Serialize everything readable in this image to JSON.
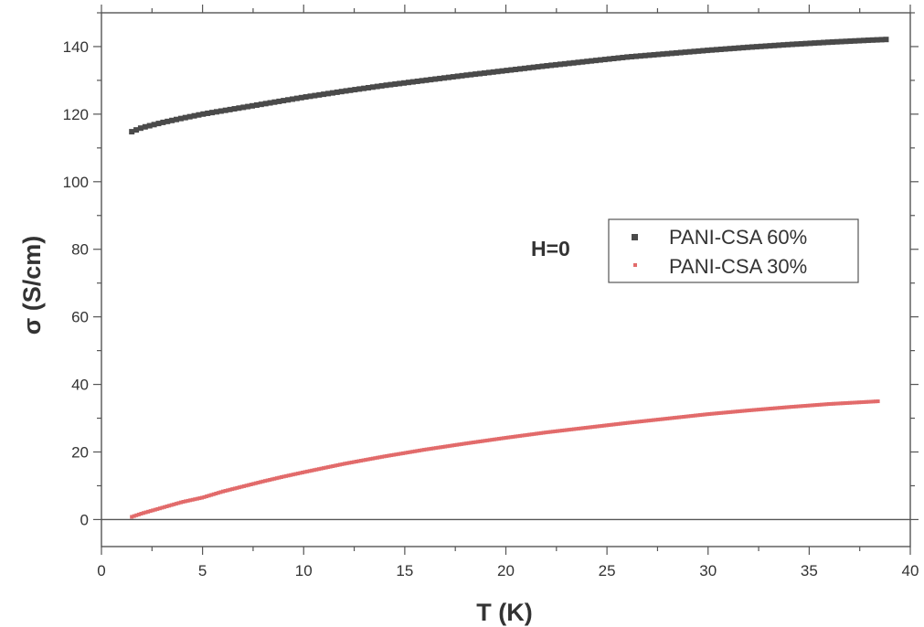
{
  "chart_data": {
    "type": "scatter",
    "xlabel": "T (K)",
    "ylabel": "σ (S/cm)",
    "xlim": [
      0,
      40
    ],
    "ylim": [
      -8,
      150
    ],
    "xticks": [
      0,
      5,
      10,
      15,
      20,
      25,
      30,
      35,
      40
    ],
    "xtick_labels": [
      "0",
      "5",
      "10",
      "15",
      "20",
      "25",
      "30",
      "35",
      "40"
    ],
    "yticks": [
      0,
      20,
      40,
      60,
      80,
      100,
      120,
      140
    ],
    "ytick_labels": [
      "0",
      "20",
      "40",
      "60",
      "80",
      "100",
      "120",
      "140"
    ],
    "zero_line": true,
    "grid": false,
    "legend": {
      "placement": "right-middle",
      "title": "H=0"
    },
    "series": [
      {
        "name": "PANI-CSA 60%",
        "color": "#4a4a4a",
        "marker": "square",
        "x": [
          1.5,
          2,
          3,
          4,
          5,
          6,
          7,
          8,
          9,
          10,
          12,
          14,
          16,
          18,
          20,
          22,
          24,
          26,
          28,
          30,
          32,
          34,
          36,
          38,
          38.8
        ],
        "y": [
          114.8,
          116,
          117.5,
          118.8,
          120,
          121,
          122,
          123,
          124,
          125,
          126.8,
          128.5,
          130,
          131.5,
          132.9,
          134.3,
          135.6,
          136.9,
          137.9,
          138.9,
          139.8,
          140.6,
          141.3,
          141.9,
          142.1
        ]
      },
      {
        "name": "PANI-CSA 30%",
        "color": "#e26b6b",
        "marker": "line",
        "x": [
          1.5,
          2,
          3,
          4,
          5,
          6,
          7,
          8,
          9,
          10,
          12,
          14,
          16,
          18,
          20,
          22,
          24,
          26,
          28,
          30,
          32,
          34,
          36,
          38.4
        ],
        "y": [
          0.8,
          1.8,
          3.5,
          5.2,
          6.5,
          8.3,
          9.8,
          11.3,
          12.7,
          14,
          16.5,
          18.7,
          20.7,
          22.5,
          24.2,
          25.8,
          27.2,
          28.6,
          29.9,
          31.2,
          32.3,
          33.3,
          34.2,
          35
        ]
      }
    ]
  }
}
